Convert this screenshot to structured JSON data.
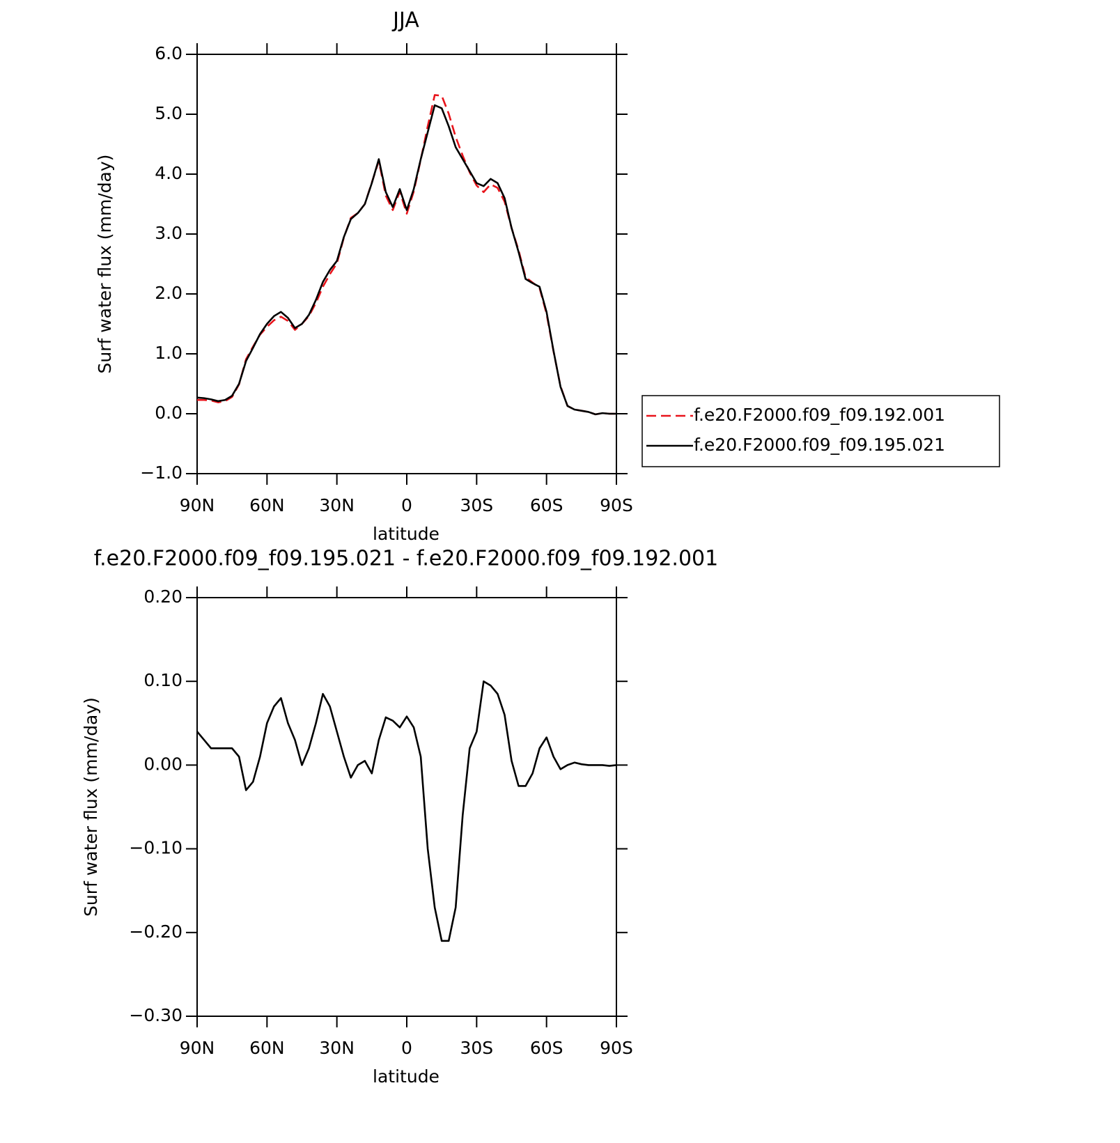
{
  "chart_data": [
    {
      "type": "line",
      "title": "JJA",
      "xlabel": "latitude",
      "ylabel": "Surf water flux (mm/day)",
      "xlim": [
        90,
        -90
      ],
      "xticks": [
        {
          "value": 90,
          "label": "90N"
        },
        {
          "value": 60,
          "label": "60N"
        },
        {
          "value": 30,
          "label": "30N"
        },
        0,
        {
          "value": -30,
          "label": "30S"
        },
        {
          "value": -60,
          "label": "60S"
        },
        {
          "value": -90,
          "label": "90S"
        }
      ],
      "ylim": [
        -1,
        6
      ],
      "yticks": [
        {
          "value": -1,
          "label": "−1.0"
        },
        {
          "value": 0,
          "label": "0.0"
        },
        {
          "value": 1,
          "label": "1.0"
        },
        {
          "value": 2,
          "label": "2.0"
        },
        {
          "value": 3,
          "label": "3.0"
        },
        {
          "value": 4,
          "label": "4.0"
        },
        {
          "value": 5,
          "label": "5.0"
        },
        {
          "value": 6,
          "label": "6.0"
        }
      ],
      "legend": "right",
      "x": [
        90,
        87,
        84,
        81,
        78,
        75,
        72,
        69,
        66,
        63,
        60,
        57,
        54,
        51,
        48,
        45,
        42,
        39,
        36,
        33,
        30,
        27,
        24,
        21,
        18,
        15,
        12,
        9,
        6,
        3,
        0,
        -3,
        -6,
        -9,
        -12,
        -15,
        -18,
        -21,
        -24,
        -27,
        -30,
        -33,
        -36,
        -39,
        -42,
        -45,
        -48,
        -51,
        -54,
        -57,
        -60,
        -63,
        -66,
        -69,
        -72,
        -75,
        -78,
        -81,
        -84,
        -87,
        -90
      ],
      "series": [
        {
          "name": "f.e20.F2000.f09_f09.192.001",
          "color": "#e8141b",
          "dash": true,
          "values": [
            0.23,
            0.23,
            0.22,
            0.19,
            0.21,
            0.28,
            0.49,
            0.91,
            1.12,
            1.32,
            1.45,
            1.56,
            1.62,
            1.55,
            1.4,
            1.5,
            1.63,
            1.85,
            2.12,
            2.33,
            2.51,
            2.94,
            3.27,
            3.35,
            3.5,
            3.86,
            4.22,
            3.64,
            3.4,
            3.71,
            3.34,
            3.71,
            4.24,
            4.8,
            5.32,
            5.31,
            5.01,
            4.62,
            4.31,
            4.03,
            3.81,
            3.7,
            3.83,
            3.77,
            3.54,
            3.1,
            2.73,
            2.28,
            2.19,
            2.1,
            1.67,
            1.04,
            0.46,
            0.13,
            0.07,
            0.05,
            0.03,
            -0.01,
            0.01,
            0.0,
            0.0
          ]
        },
        {
          "name": "f.e20.F2000.f09_f09.195.021",
          "color": "#000000",
          "dash": false,
          "values": [
            0.27,
            0.26,
            0.24,
            0.21,
            0.23,
            0.3,
            0.5,
            0.88,
            1.1,
            1.33,
            1.5,
            1.63,
            1.7,
            1.6,
            1.43,
            1.5,
            1.65,
            1.9,
            2.2,
            2.4,
            2.55,
            2.95,
            3.25,
            3.35,
            3.5,
            3.85,
            4.25,
            3.7,
            3.45,
            3.75,
            3.4,
            3.75,
            4.25,
            4.7,
            5.15,
            5.1,
            4.8,
            4.45,
            4.25,
            4.05,
            3.85,
            3.8,
            3.92,
            3.85,
            3.6,
            3.1,
            2.7,
            2.25,
            2.18,
            2.12,
            1.7,
            1.05,
            0.45,
            0.13,
            0.07,
            0.05,
            0.03,
            -0.01,
            0.01,
            0.0,
            0.0
          ]
        }
      ]
    },
    {
      "type": "line",
      "title": "f.e20.F2000.f09_f09.195.021 - f.e20.F2000.f09_f09.192.001",
      "xlabel": "latitude",
      "ylabel": "Surf water flux (mm/day)",
      "xlim": [
        90,
        -90
      ],
      "xticks": [
        {
          "value": 90,
          "label": "90N"
        },
        {
          "value": 60,
          "label": "60N"
        },
        {
          "value": 30,
          "label": "30N"
        },
        0,
        {
          "value": -30,
          "label": "30S"
        },
        {
          "value": -60,
          "label": "60S"
        },
        {
          "value": -90,
          "label": "90S"
        }
      ],
      "ylim": [
        -0.3,
        0.2
      ],
      "yticks": [
        {
          "value": -0.3,
          "label": "−0.30"
        },
        {
          "value": -0.2,
          "label": "−0.20"
        },
        {
          "value": -0.1,
          "label": "−0.10"
        },
        {
          "value": 0,
          "label": "0.00"
        },
        {
          "value": 0.1,
          "label": "0.10"
        },
        {
          "value": 0.2,
          "label": "0.20"
        }
      ],
      "x": [
        90,
        87,
        84,
        81,
        78,
        75,
        72,
        69,
        66,
        63,
        60,
        57,
        54,
        51,
        48,
        45,
        42,
        39,
        36,
        33,
        30,
        27,
        24,
        21,
        18,
        15,
        12,
        9,
        6,
        3,
        0,
        -3,
        -6,
        -9,
        -12,
        -15,
        -18,
        -21,
        -24,
        -27,
        -30,
        -33,
        -36,
        -39,
        -42,
        -45,
        -48,
        -51,
        -54,
        -57,
        -60,
        -63,
        -66,
        -69,
        -72,
        -75,
        -78,
        -81,
        -84,
        -87,
        -90
      ],
      "series": [
        {
          "color": "#000000",
          "dash": false,
          "values": [
            0.04,
            0.03,
            0.02,
            0.02,
            0.02,
            0.02,
            0.01,
            -0.03,
            -0.02,
            0.01,
            0.05,
            0.07,
            0.08,
            0.05,
            0.03,
            0.0,
            0.02,
            0.05,
            0.085,
            0.07,
            0.04,
            0.01,
            -0.015,
            0.0,
            0.005,
            -0.01,
            0.03,
            0.057,
            0.053,
            0.045,
            0.058,
            0.045,
            0.01,
            -0.1,
            -0.17,
            -0.21,
            -0.21,
            -0.17,
            -0.06,
            0.02,
            0.04,
            0.1,
            0.095,
            0.085,
            0.06,
            0.005,
            -0.025,
            -0.025,
            -0.01,
            0.02,
            0.033,
            0.01,
            -0.005,
            0.0,
            0.003,
            0.001,
            0.0,
            0.0,
            0.0,
            -0.001,
            0.0
          ]
        }
      ]
    }
  ]
}
